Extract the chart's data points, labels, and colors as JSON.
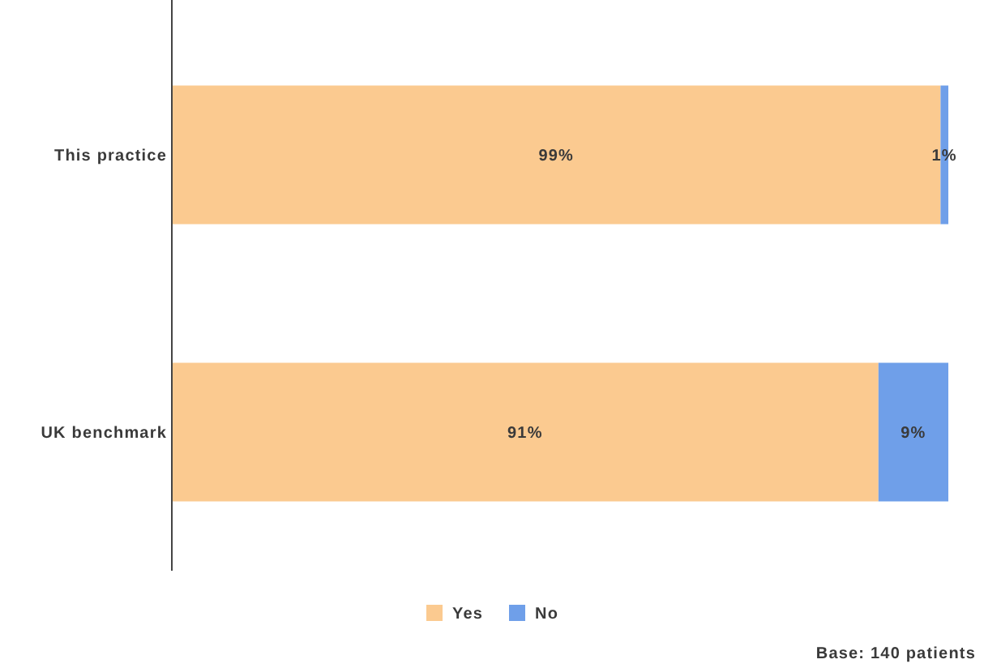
{
  "chart_data": {
    "type": "bar",
    "orientation": "horizontal",
    "stacked": true,
    "categories": [
      "This practice",
      "UK benchmark"
    ],
    "series": [
      {
        "name": "Yes",
        "color": "#fbca90",
        "values": [
          99,
          91
        ],
        "value_labels": [
          "99%",
          "91%"
        ]
      },
      {
        "name": "No",
        "color": "#6f9fe9",
        "values": [
          1,
          9
        ],
        "value_labels": [
          "1%",
          "9%"
        ]
      }
    ],
    "legend": "bottom",
    "annotations": [
      "Base: 140 patients"
    ]
  }
}
